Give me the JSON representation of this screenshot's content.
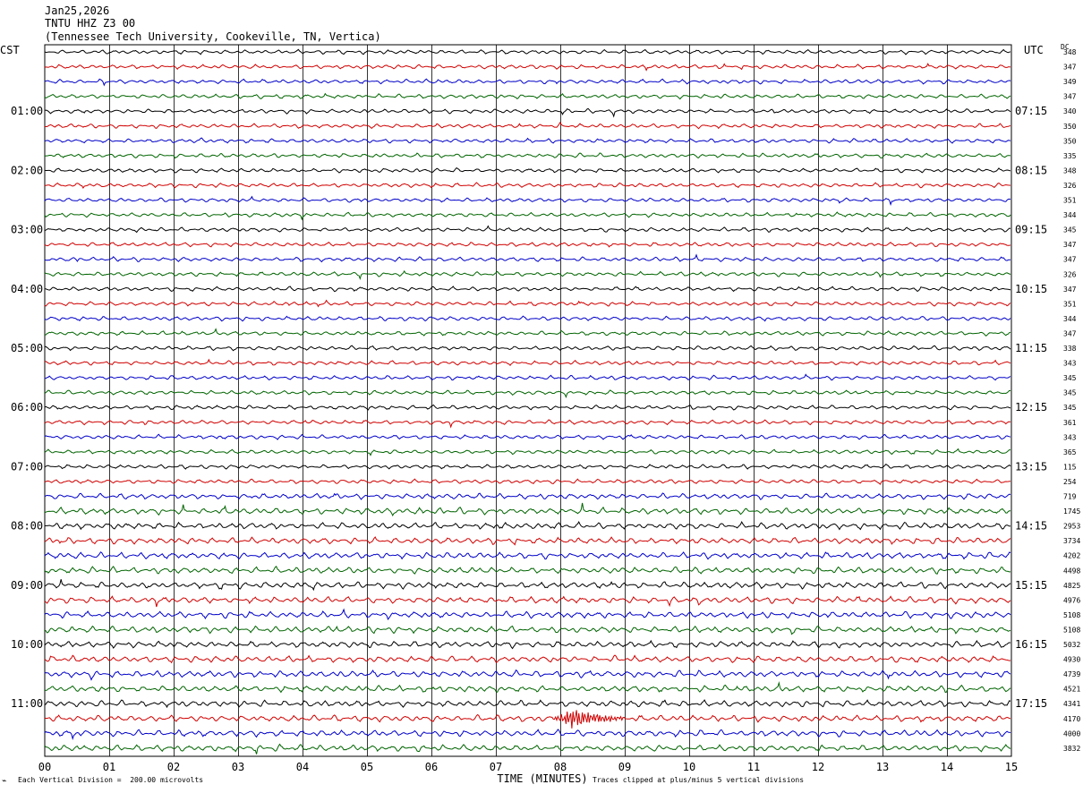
{
  "header": {
    "date": "Jan25,2026",
    "station": "TNTU HHZ Z3 00",
    "location": "(Tennessee Tech University, Cookeville, TN, Vertica)"
  },
  "left_zone_label": "CST",
  "right_zone_label": "UTC",
  "dc_label": "DC",
  "footer": {
    "scale_note": "Each Vertical Division =  200.00 microvolts",
    "clip_note": "Traces clipped at plus/minus 5 vertical divisions",
    "corner_mark": "⌁"
  },
  "chart_data": {
    "type": "line",
    "xlabel": "TIME (MINUTES)",
    "x_ticks": [
      "00",
      "01",
      "02",
      "03",
      "04",
      "05",
      "06",
      "07",
      "08",
      "09",
      "10",
      "11",
      "12",
      "13",
      "14",
      "15"
    ],
    "xlim": [
      0,
      15
    ],
    "grid": true,
    "trace_colors": [
      "#000000",
      "#d00000",
      "#0000c8",
      "#006400"
    ],
    "left_hour_labels": [
      "01:00",
      "02:00",
      "03:00",
      "04:00",
      "05:00",
      "06:00",
      "07:00",
      "08:00",
      "09:00",
      "10:00",
      "11:00"
    ],
    "right_hour_labels": [
      "07:15",
      "08:15",
      "09:15",
      "10:15",
      "11:15",
      "12:15",
      "13:15",
      "14:15",
      "15:15",
      "16:15",
      "17:15"
    ],
    "dc_offsets": [
      348,
      347,
      349,
      347,
      340,
      350,
      350,
      335,
      348,
      326,
      351,
      344,
      345,
      347,
      347,
      326,
      347,
      351,
      344,
      347,
      338,
      343,
      345,
      345,
      345,
      361,
      343,
      365,
      115,
      254,
      719,
      1745,
      2953,
      3734,
      4202,
      4498,
      4825,
      4976,
      5108,
      5108,
      5032,
      4930,
      4739,
      4521,
      4341,
      4170,
      4000,
      3832
    ],
    "event": {
      "trace": 45,
      "start_minute": 7.9,
      "end_minute": 9.0
    }
  }
}
